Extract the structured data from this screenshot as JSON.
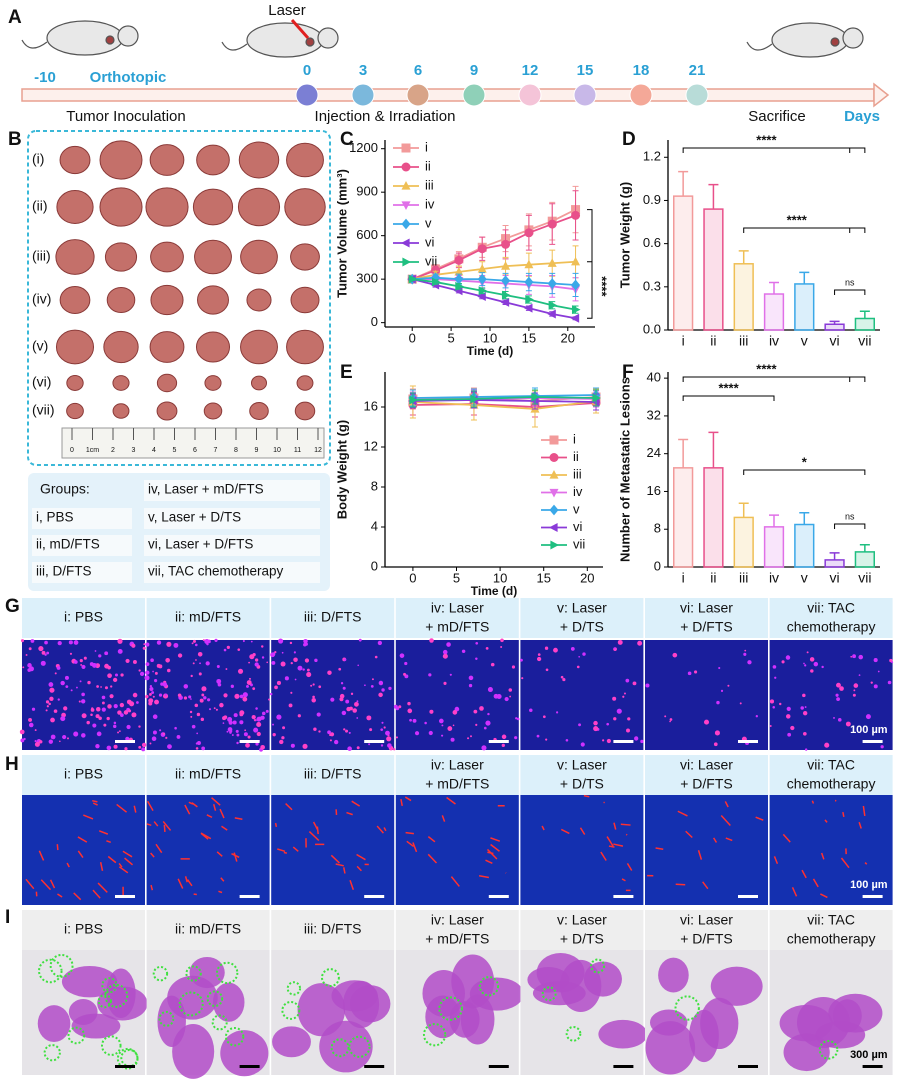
{
  "panel_labels": [
    "A",
    "B",
    "C",
    "D",
    "E",
    "F",
    "G",
    "H",
    "I"
  ],
  "timeline": {
    "days": [
      -10,
      0,
      3,
      6,
      9,
      12,
      15,
      18,
      21
    ],
    "colors": [
      null,
      "#7b7fd4",
      "#7bb8dc",
      "#d8a488",
      "#8fd0b8",
      "#f4c4d8",
      "#c8b8e8",
      "#f4a898",
      "#b8dcd8"
    ],
    "laser": "Laser",
    "orthotopic": "Orthotopic",
    "stages": [
      "Tumor Inoculation",
      "Injection & Irradiation",
      "Sacrifice"
    ],
    "unit": "Days"
  },
  "tumor_rows": [
    "(i)",
    "(ii)",
    "(iii)",
    "(iv)",
    "(v)",
    "(vi)",
    "(vii)"
  ],
  "ruler": [
    "0",
    "1cm",
    "2",
    "3",
    "4",
    "5",
    "6",
    "7",
    "8",
    "9",
    "10",
    "11",
    "12"
  ],
  "groups": {
    "title": "Groups:",
    "items": [
      "i, PBS",
      "ii, mD/FTS",
      "iii, D/FTS",
      "iv, Laser + mD/FTS",
      "v, Laser + D/TS",
      "vi, Laser + D/FTS",
      "vii, TAC chemotherapy"
    ]
  },
  "chart_data": [
    {
      "type": "line",
      "xlabel": "Time (d)",
      "ylabel": "Tumor Volume (mm³)",
      "x": [
        0,
        3,
        6,
        9,
        12,
        15,
        18,
        21
      ],
      "xlim": [
        -3.5,
        23.5
      ],
      "xticks": [
        0,
        5,
        10,
        15,
        20
      ],
      "ylim": [
        -30,
        1260
      ],
      "yticks": [
        0,
        300,
        600,
        900,
        1200
      ],
      "series": [
        {
          "name": "i",
          "color": "#f29a9a",
          "marker": "square",
          "values": [
            300,
            370,
            440,
            520,
            580,
            640,
            700,
            780
          ],
          "errors": [
            15,
            30,
            50,
            70,
            90,
            110,
            130,
            160
          ]
        },
        {
          "name": "ii",
          "color": "#e8508a",
          "marker": "circle",
          "values": [
            300,
            360,
            430,
            510,
            540,
            620,
            680,
            740
          ],
          "errors": [
            15,
            30,
            50,
            80,
            100,
            120,
            140,
            170
          ]
        },
        {
          "name": "iii",
          "color": "#efbf55",
          "marker": "triangle-up",
          "values": [
            300,
            330,
            350,
            370,
            390,
            400,
            410,
            420
          ],
          "errors": [
            15,
            25,
            40,
            50,
            60,
            80,
            90,
            110
          ]
        },
        {
          "name": "iv",
          "color": "#e070e8",
          "marker": "triangle-down",
          "values": [
            300,
            300,
            290,
            280,
            270,
            260,
            250,
            230
          ],
          "errors": [
            15,
            25,
            35,
            45,
            55,
            65,
            75,
            80
          ]
        },
        {
          "name": "v",
          "color": "#3aa8e8",
          "marker": "diamond",
          "values": [
            300,
            310,
            300,
            300,
            290,
            280,
            270,
            260
          ],
          "errors": [
            15,
            25,
            35,
            45,
            50,
            60,
            70,
            80
          ]
        },
        {
          "name": "vi",
          "color": "#8a3ad8",
          "marker": "triangle-left",
          "values": [
            300,
            260,
            220,
            180,
            140,
            100,
            60,
            30
          ],
          "errors": [
            10,
            15,
            15,
            15,
            15,
            15,
            15,
            10
          ]
        },
        {
          "name": "vii",
          "color": "#1fbf80",
          "marker": "triangle-right",
          "values": [
            300,
            280,
            250,
            220,
            190,
            160,
            120,
            90
          ],
          "errors": [
            10,
            15,
            20,
            20,
            25,
            25,
            25,
            25
          ]
        }
      ],
      "annotations": [
        "****"
      ]
    },
    {
      "type": "bar",
      "ylabel": "Tumor Weight (g)",
      "categories": [
        "i",
        "ii",
        "iii",
        "iv",
        "v",
        "vi",
        "vii"
      ],
      "colors": [
        "#f29a9a",
        "#e8508a",
        "#efbf55",
        "#e070e8",
        "#3aa8e8",
        "#8a3ad8",
        "#1fbf80"
      ],
      "values": [
        0.93,
        0.84,
        0.46,
        0.25,
        0.32,
        0.04,
        0.08
      ],
      "errors": [
        0.17,
        0.17,
        0.09,
        0.08,
        0.08,
        0.02,
        0.05
      ],
      "ylim": [
        0,
        1.32
      ],
      "yticks": [
        {
          "value": 0,
          "label": "0.0"
        },
        0.3,
        0.6,
        0.9,
        1.2
      ],
      "annotations": [
        "****",
        "****",
        "ns"
      ]
    },
    {
      "type": "line",
      "xlabel": "Time (d)",
      "ylabel": "Body Weight (g)",
      "x": [
        0,
        7,
        14,
        21
      ],
      "xlim": [
        -3.2,
        21.8
      ],
      "xticks": [
        0,
        5,
        10,
        15,
        20
      ],
      "ylim": [
        0,
        19.5
      ],
      "yticks": [
        0,
        4,
        8,
        12,
        16
      ],
      "series": [
        {
          "name": "i",
          "color": "#f29a9a",
          "marker": "square",
          "values": [
            16.8,
            16.9,
            16.6,
            17.0
          ],
          "errors": [
            1.0,
            1.0,
            1.1,
            0.9
          ]
        },
        {
          "name": "ii",
          "color": "#e8508a",
          "marker": "circle",
          "values": [
            16.2,
            16.3,
            16.0,
            16.4
          ],
          "errors": [
            1.0,
            1.1,
            1.0,
            1.0
          ]
        },
        {
          "name": "iii",
          "color": "#efbf55",
          "marker": "triangle-up",
          "values": [
            16.5,
            16.2,
            15.8,
            16.6
          ],
          "errors": [
            1.6,
            1.5,
            1.8,
            1.2
          ]
        },
        {
          "name": "iv",
          "color": "#e070e8",
          "marker": "triangle-down",
          "values": [
            16.7,
            16.8,
            16.9,
            16.8
          ],
          "errors": [
            0.8,
            0.9,
            0.8,
            0.8
          ]
        },
        {
          "name": "v",
          "color": "#3aa8e8",
          "marker": "diamond",
          "values": [
            16.9,
            17.0,
            17.1,
            17.2
          ],
          "errors": [
            0.8,
            0.8,
            0.8,
            0.7
          ]
        },
        {
          "name": "vi",
          "color": "#8a3ad8",
          "marker": "triangle-left",
          "values": [
            16.6,
            16.7,
            16.6,
            16.5
          ],
          "errors": [
            0.7,
            0.8,
            0.8,
            0.8
          ]
        },
        {
          "name": "vii",
          "color": "#1fbf80",
          "marker": "triangle-right",
          "values": [
            16.7,
            16.8,
            17.0,
            16.9
          ],
          "errors": [
            0.7,
            0.8,
            0.7,
            0.8
          ]
        }
      ]
    },
    {
      "type": "bar",
      "ylabel": "Number of Metastatic Lesions",
      "categories": [
        "i",
        "ii",
        "iii",
        "iv",
        "v",
        "vi",
        "vii"
      ],
      "colors": [
        "#f29a9a",
        "#e8508a",
        "#efbf55",
        "#e070e8",
        "#3aa8e8",
        "#8a3ad8",
        "#1fbf80"
      ],
      "values": [
        21,
        21,
        10.5,
        8.5,
        9,
        1.5,
        3.2
      ],
      "errors": [
        6,
        7.5,
        3,
        2.5,
        2.5,
        1.5,
        1.5
      ],
      "ylim": [
        0,
        41.3
      ],
      "yticks": [
        0,
        8,
        16,
        24,
        32,
        40
      ],
      "annotations": [
        "****",
        "****",
        "*",
        "ns"
      ]
    }
  ],
  "images": {
    "columns": [
      [
        "i: PBS"
      ],
      [
        "ii: mD/FTS"
      ],
      [
        "iii: D/FTS"
      ],
      [
        "iv: Laser",
        "+ mD/FTS"
      ],
      [
        "v: Laser",
        "+ D/TS"
      ],
      [
        "vi: Laser",
        "+ D/FTS"
      ],
      [
        "vii: TAC",
        "chemotherapy"
      ]
    ],
    "scale_bars": [
      "100 µm",
      "100 µm",
      "300 µm"
    ]
  }
}
